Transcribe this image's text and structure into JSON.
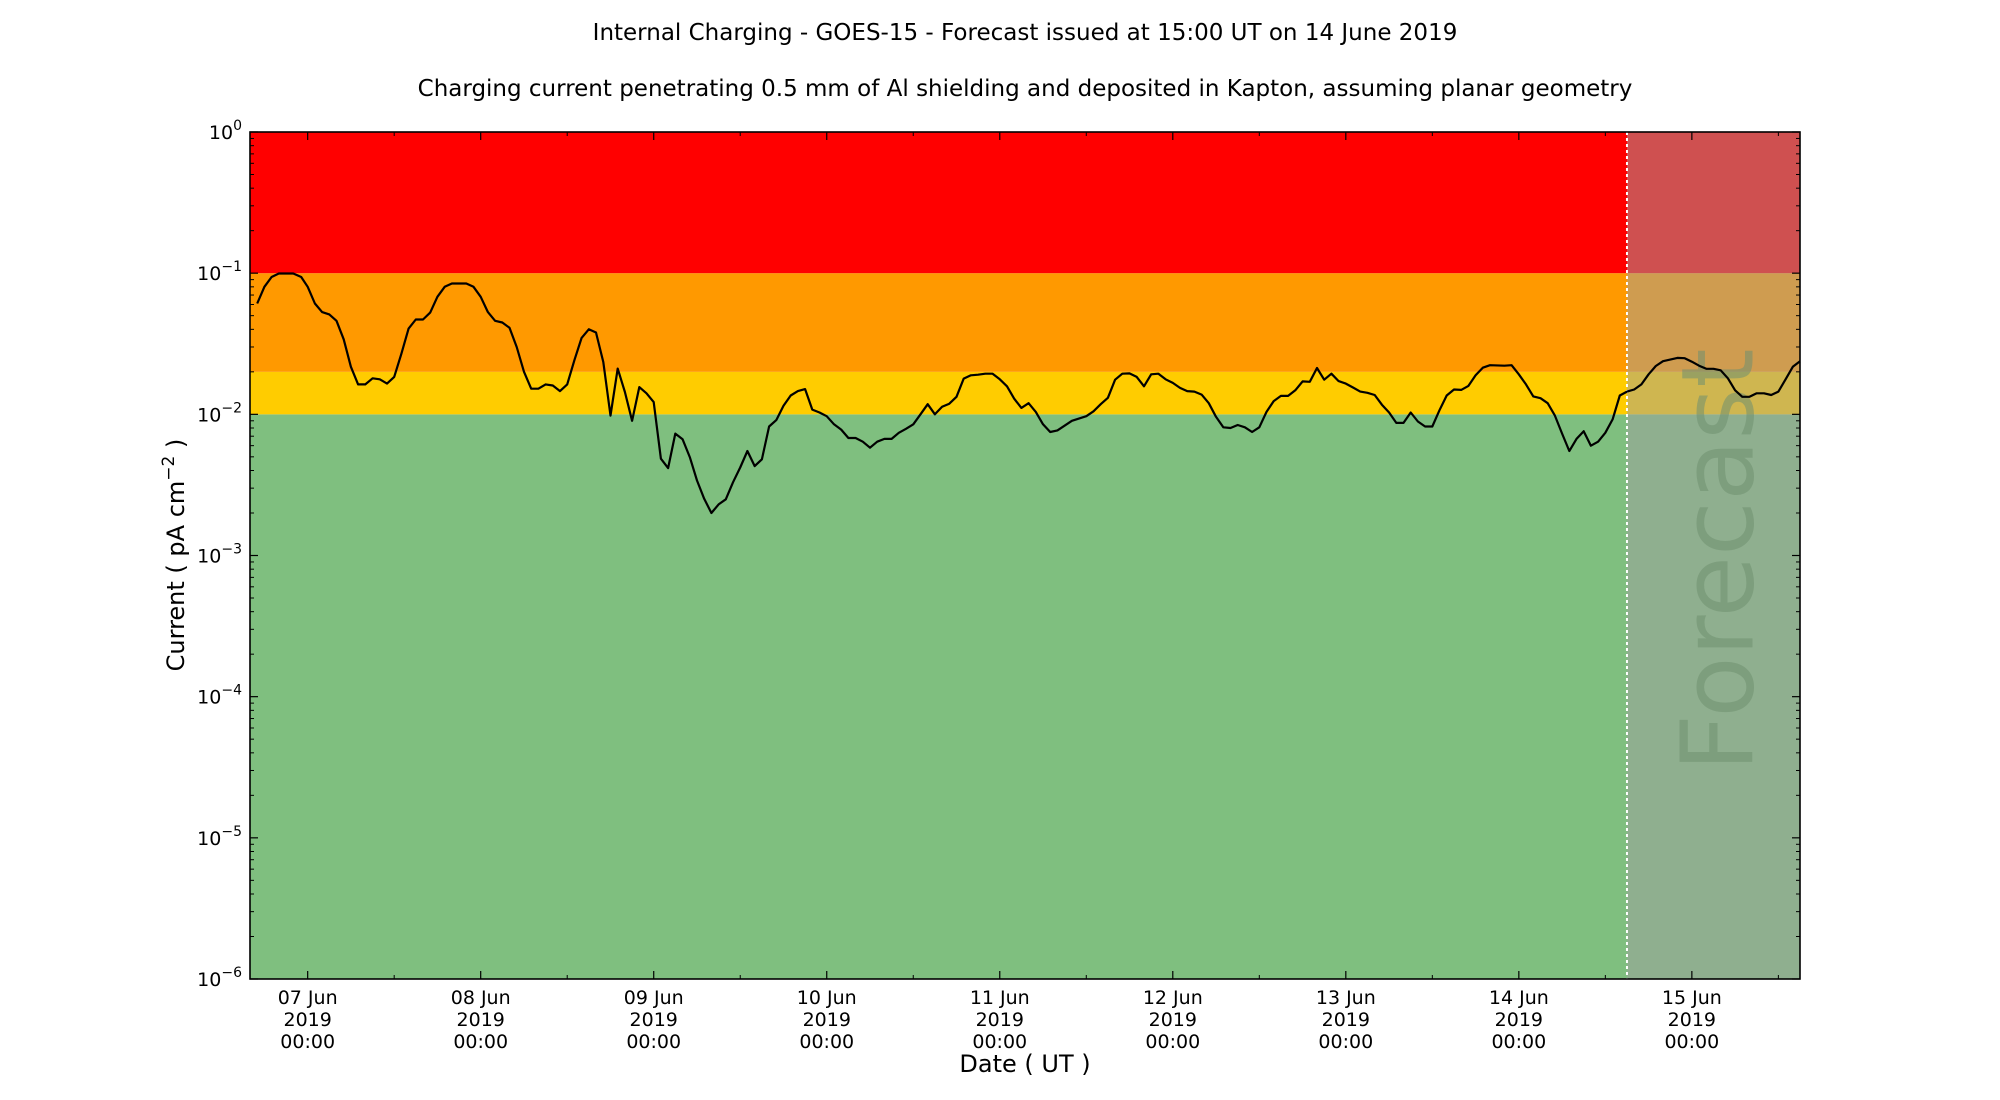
{
  "chart_data": {
    "type": "line",
    "title": "Internal Charging - GOES-15 - Forecast issued at 15:00 UT on 14 June 2019",
    "subtitle": "Charging current penetrating 0.5 mm of Al shielding and deposited in Kapton, assuming planar geometry",
    "xlabel": "Date ( UT )",
    "ylabel_main": "Current ( pA cm",
    "ylabel_sup": "−2",
    "ylabel_tail": " )",
    "yscale": "log",
    "ylim": [
      1e-06,
      1
    ],
    "x_units": "hours since 07 Jun 2019 00:00",
    "xlim": [
      -8,
      207
    ],
    "forecast_start": 183,
    "forecast_label": "Forecast",
    "bands": [
      {
        "name": "green",
        "from": 1e-06,
        "to": 0.01,
        "color": "#7fbf7f"
      },
      {
        "name": "yellow",
        "from": 0.01,
        "to": 0.02,
        "color": "#ffcc00"
      },
      {
        "name": "orange",
        "from": 0.02,
        "to": 0.1,
        "color": "#ff9900"
      },
      {
        "name": "red",
        "from": 0.1,
        "to": 1,
        "color": "#ff0000"
      }
    ],
    "forecast_overlay_color": "rgba(160,160,160,0.5)",
    "line_color": "#000000",
    "y_ticks": [
      {
        "value": 1.0,
        "base": "10",
        "exp": "0"
      },
      {
        "value": 0.1,
        "base": "10",
        "exp": "−1"
      },
      {
        "value": 0.01,
        "base": "10",
        "exp": "−2"
      },
      {
        "value": 0.001,
        "base": "10",
        "exp": "−3"
      },
      {
        "value": 0.0001,
        "base": "10",
        "exp": "−4"
      },
      {
        "value": 1e-05,
        "base": "10",
        "exp": "−5"
      },
      {
        "value": 1e-06,
        "base": "10",
        "exp": "−6"
      }
    ],
    "x_ticks": [
      {
        "hour": 0,
        "l1": "07 Jun",
        "l2": "2019",
        "l3": "00:00"
      },
      {
        "hour": 24,
        "l1": "08 Jun",
        "l2": "2019",
        "l3": "00:00"
      },
      {
        "hour": 48,
        "l1": "09 Jun",
        "l2": "2019",
        "l3": "00:00"
      },
      {
        "hour": 72,
        "l1": "10 Jun",
        "l2": "2019",
        "l3": "00:00"
      },
      {
        "hour": 96,
        "l1": "11 Jun",
        "l2": "2019",
        "l3": "00:00"
      },
      {
        "hour": 120,
        "l1": "12 Jun",
        "l2": "2019",
        "l3": "00:00"
      },
      {
        "hour": 144,
        "l1": "13 Jun",
        "l2": "2019",
        "l3": "00:00"
      },
      {
        "hour": 168,
        "l1": "14 Jun",
        "l2": "2019",
        "l3": "00:00"
      },
      {
        "hour": 192,
        "l1": "15 Jun",
        "l2": "2019",
        "l3": "00:00"
      }
    ],
    "series": [
      {
        "name": "Charging current",
        "points": [
          [
            -7,
            0.061
          ],
          [
            -6,
            0.08
          ],
          [
            -5,
            0.094
          ],
          [
            -4,
            0.0995
          ],
          [
            -2,
            0.0995
          ],
          [
            -0.9,
            0.094
          ],
          [
            0,
            0.08
          ],
          [
            1,
            0.061
          ],
          [
            2,
            0.053
          ],
          [
            3,
            0.051
          ],
          [
            4,
            0.046
          ],
          [
            5,
            0.034
          ],
          [
            6,
            0.0217
          ],
          [
            7,
            0.0163
          ],
          [
            8,
            0.0163
          ],
          [
            9,
            0.018
          ],
          [
            10,
            0.0177
          ],
          [
            11,
            0.0165
          ],
          [
            12,
            0.0184
          ],
          [
            13,
            0.0269
          ],
          [
            14,
            0.0405
          ],
          [
            15,
            0.047
          ],
          [
            16,
            0.047
          ],
          [
            17,
            0.0526
          ],
          [
            18,
            0.068
          ],
          [
            19,
            0.08
          ],
          [
            20,
            0.0845
          ],
          [
            22,
            0.0845
          ],
          [
            23,
            0.08
          ],
          [
            24,
            0.068
          ],
          [
            25,
            0.053
          ],
          [
            26,
            0.046
          ],
          [
            27,
            0.0447
          ],
          [
            28,
            0.041
          ],
          [
            29,
            0.03
          ],
          [
            30,
            0.02
          ],
          [
            31,
            0.0152
          ],
          [
            32,
            0.0152
          ],
          [
            33,
            0.0163
          ],
          [
            34,
            0.016
          ],
          [
            35,
            0.0146
          ],
          [
            36,
            0.0163
          ],
          [
            37,
            0.0242
          ],
          [
            38,
            0.0348
          ],
          [
            39,
            0.04
          ],
          [
            40,
            0.038
          ],
          [
            41,
            0.0235
          ],
          [
            42,
            0.0098
          ],
          [
            43,
            0.0211
          ],
          [
            44,
            0.0144
          ],
          [
            45,
            0.009
          ],
          [
            46,
            0.0156
          ],
          [
            47,
            0.0141
          ],
          [
            48,
            0.0122
          ],
          [
            49,
            0.00485
          ],
          [
            50,
            0.00416
          ],
          [
            51,
            0.0073
          ],
          [
            52,
            0.00665
          ],
          [
            53,
            0.00498
          ],
          [
            54,
            0.0034
          ],
          [
            55,
            0.00252
          ],
          [
            56,
            0.002
          ],
          [
            57,
            0.0023
          ],
          [
            58,
            0.0025
          ],
          [
            59,
            0.0033
          ],
          [
            60,
            0.0042
          ],
          [
            61,
            0.0055
          ],
          [
            62,
            0.0043
          ],
          [
            63,
            0.0048
          ],
          [
            64,
            0.0082
          ],
          [
            65,
            0.0091
          ],
          [
            66,
            0.0115
          ],
          [
            67,
            0.0136
          ],
          [
            68,
            0.0146
          ],
          [
            69,
            0.0151
          ],
          [
            70,
            0.0108
          ],
          [
            71,
            0.0103
          ],
          [
            72,
            0.0097
          ],
          [
            73,
            0.0085
          ],
          [
            74,
            0.0078
          ],
          [
            75,
            0.0068
          ],
          [
            76,
            0.0068
          ],
          [
            77,
            0.0064
          ],
          [
            78,
            0.0058
          ],
          [
            79,
            0.0064
          ],
          [
            80,
            0.0067
          ],
          [
            81,
            0.0067
          ],
          [
            82,
            0.0074
          ],
          [
            83,
            0.0079
          ],
          [
            84,
            0.0085
          ],
          [
            85,
            0.01
          ],
          [
            86,
            0.0118
          ],
          [
            87,
            0.01
          ],
          [
            88,
            0.0113
          ],
          [
            89,
            0.0119
          ],
          [
            90,
            0.0133
          ],
          [
            91,
            0.0179
          ],
          [
            92,
            0.0189
          ],
          [
            93,
            0.0191
          ],
          [
            94,
            0.0194
          ],
          [
            95,
            0.0194
          ],
          [
            96,
            0.0177
          ],
          [
            97,
            0.0158
          ],
          [
            98,
            0.0129
          ],
          [
            99,
            0.0111
          ],
          [
            100,
            0.012
          ],
          [
            101,
            0.0104
          ],
          [
            102,
            0.0085
          ],
          [
            103,
            0.0075
          ],
          [
            104,
            0.0077
          ],
          [
            106,
            0.009
          ],
          [
            108,
            0.0097
          ],
          [
            109,
            0.0105
          ],
          [
            110,
            0.0118
          ],
          [
            111,
            0.0131
          ],
          [
            112,
            0.0176
          ],
          [
            113,
            0.0194
          ],
          [
            114,
            0.0195
          ],
          [
            115,
            0.0184
          ],
          [
            116,
            0.0158
          ],
          [
            117,
            0.0192
          ],
          [
            118,
            0.0194
          ],
          [
            119,
            0.0177
          ],
          [
            120,
            0.0167
          ],
          [
            121,
            0.0154
          ],
          [
            122,
            0.0146
          ],
          [
            123,
            0.0145
          ],
          [
            124,
            0.0138
          ],
          [
            125,
            0.012
          ],
          [
            126,
            0.0096
          ],
          [
            127,
            0.0081
          ],
          [
            128,
            0.008
          ],
          [
            129,
            0.0084
          ],
          [
            130,
            0.0081
          ],
          [
            131,
            0.0075
          ],
          [
            132,
            0.0081
          ],
          [
            133,
            0.0104
          ],
          [
            134,
            0.0124
          ],
          [
            135,
            0.0135
          ],
          [
            136,
            0.0135
          ],
          [
            137,
            0.0148
          ],
          [
            138,
            0.0171
          ],
          [
            139,
            0.017
          ],
          [
            140,
            0.0213
          ],
          [
            141,
            0.0176
          ],
          [
            142,
            0.0194
          ],
          [
            143,
            0.0172
          ],
          [
            144,
            0.0165
          ],
          [
            145,
            0.0155
          ],
          [
            146,
            0.0145
          ],
          [
            147,
            0.0142
          ],
          [
            148,
            0.0137
          ],
          [
            149,
            0.0117
          ],
          [
            150,
            0.0103
          ],
          [
            151,
            0.0087
          ],
          [
            152,
            0.0087
          ],
          [
            153,
            0.0103
          ],
          [
            154,
            0.0089
          ],
          [
            155,
            0.0082
          ],
          [
            156,
            0.0082
          ],
          [
            157,
            0.0107
          ],
          [
            158,
            0.0136
          ],
          [
            159,
            0.015
          ],
          [
            160,
            0.0149
          ],
          [
            161,
            0.0159
          ],
          [
            162,
            0.0189
          ],
          [
            163,
            0.0214
          ],
          [
            164,
            0.0223
          ],
          [
            166,
            0.0221
          ],
          [
            167,
            0.0223
          ],
          [
            168,
            0.0192
          ],
          [
            169,
            0.0163
          ],
          [
            170,
            0.0134
          ],
          [
            171,
            0.013
          ],
          [
            172,
            0.012
          ],
          [
            173,
            0.0098
          ],
          [
            174,
            0.0073
          ],
          [
            175,
            0.0055
          ],
          [
            176,
            0.0067
          ],
          [
            177,
            0.0076
          ],
          [
            178,
            0.006
          ],
          [
            179,
            0.0064
          ],
          [
            180,
            0.0074
          ],
          [
            181,
            0.0092
          ],
          [
            182,
            0.0136
          ],
          [
            183,
            0.0145
          ],
          [
            184,
            0.015
          ],
          [
            185,
            0.0163
          ],
          [
            186,
            0.0192
          ],
          [
            187,
            0.022
          ],
          [
            188,
            0.0238
          ],
          [
            189,
            0.0244
          ],
          [
            190,
            0.0251
          ],
          [
            191,
            0.025
          ],
          [
            192,
            0.0236
          ],
          [
            193,
            0.0221
          ],
          [
            194,
            0.021
          ],
          [
            195,
            0.021
          ],
          [
            196,
            0.0205
          ],
          [
            197,
            0.018
          ],
          [
            198,
            0.0148
          ],
          [
            199,
            0.0133
          ],
          [
            200,
            0.0133
          ],
          [
            201,
            0.0141
          ],
          [
            202,
            0.0141
          ],
          [
            203,
            0.0137
          ],
          [
            204,
            0.0145
          ],
          [
            205,
            0.0177
          ],
          [
            206,
            0.0217
          ],
          [
            207,
            0.0238
          ]
        ]
      }
    ]
  }
}
